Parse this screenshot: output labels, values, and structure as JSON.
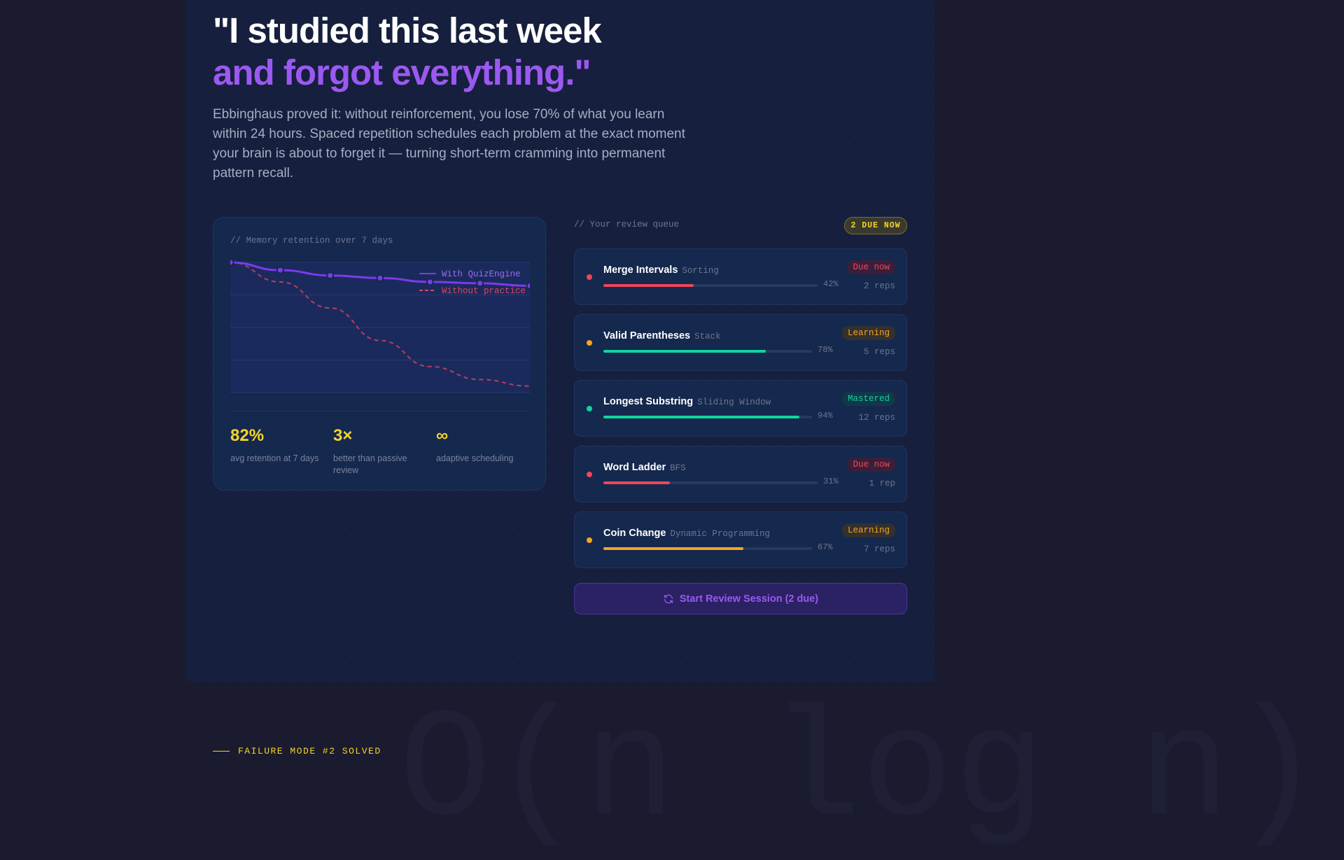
{
  "hero": {
    "line1": "\"I studied this last week",
    "line2": "and forgot everything.\"",
    "paragraph": "Ebbinghaus proved it: without reinforcement, you lose 70% of what you learn within 24 hours. Spaced repetition schedules each problem at the exact moment your brain is about to forget it — turning short-term cramming into permanent pattern recall."
  },
  "chart_card": {
    "label": "// Memory retention over 7 days",
    "stats": [
      {
        "value": "82%",
        "label": "avg retention at 7 days"
      },
      {
        "value": "3×",
        "label": "better than passive review"
      },
      {
        "value": "∞",
        "label": "adaptive scheduling"
      }
    ]
  },
  "chart_data": {
    "type": "line",
    "x": [
      1,
      2,
      3,
      4,
      5,
      6,
      7
    ],
    "ylim": [
      0,
      100
    ],
    "grid": true,
    "legend": "top-right",
    "series": [
      {
        "name": "With QuizEngine",
        "values": [
          100,
          94,
          90,
          88,
          85,
          84,
          82
        ],
        "color": "#7c3aed",
        "style": "solid",
        "markers": true
      },
      {
        "name": "Without practice",
        "values": [
          100,
          85,
          65,
          40,
          20,
          10,
          5
        ],
        "color": "#d9465f",
        "style": "dashed",
        "markers": false
      }
    ]
  },
  "queue": {
    "label": "// Your review queue",
    "badge": "2 DUE NOW",
    "items": [
      {
        "title": "Merge Intervals",
        "category": "Sorting",
        "retention": 42,
        "pct": "42%",
        "status": "Due now",
        "reps": "2 reps",
        "kind": "due"
      },
      {
        "title": "Valid Parentheses",
        "category": "Stack",
        "retention": 78,
        "pct": "78%",
        "status": "Learning",
        "reps": "5 reps",
        "kind": "learning"
      },
      {
        "title": "Longest Substring",
        "category": "Sliding Window",
        "retention": 94,
        "pct": "94%",
        "status": "Mastered",
        "reps": "12 reps",
        "kind": "mastered"
      },
      {
        "title": "Word Ladder",
        "category": "BFS",
        "retention": 31,
        "pct": "31%",
        "status": "Due now",
        "reps": "1 rep",
        "kind": "due"
      },
      {
        "title": "Coin Change",
        "category": "Dynamic Programming",
        "retention": 67,
        "pct": "67%",
        "status": "Learning",
        "reps": "7 reps",
        "kind": "learning"
      }
    ],
    "button": "Start Review Session (2 due)",
    "button_icon": "refresh-icon"
  },
  "next_section": {
    "watermark": "O(n log n)",
    "eyebrow": "FAILURE MODE #2 SOLVED"
  },
  "colors": {
    "accent": "#9b59f0",
    "due": "#f0455a",
    "learning": "#f5a524",
    "mastered": "#10d4a0",
    "stat": "#f6d32b"
  }
}
